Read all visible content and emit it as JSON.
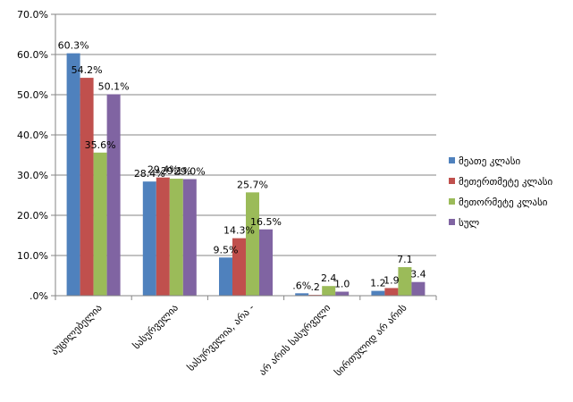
{
  "chart_data": {
    "type": "bar",
    "categories": [
      "აუცილებელია",
      "სასურველია",
      "სასურველია, არა -",
      "არ არის სასურველი",
      "სირთულიდ არ არის"
    ],
    "series": [
      {
        "name": "მეათე კლასი",
        "color": "#4F81BD",
        "values": [
          60.3,
          28.4,
          9.5,
          0.6,
          1.2
        ],
        "labels": [
          "60.3%",
          "28.4%",
          "9.5%",
          ".6%",
          "1.2"
        ]
      },
      {
        "name": "მეთერთმეტე კლასი",
        "color": "#C0504D",
        "values": [
          54.2,
          29.4,
          14.3,
          0.2,
          1.9
        ],
        "labels": [
          "54.2%",
          "29.4%",
          "14.3%",
          ".2",
          "1.9"
        ]
      },
      {
        "name": "მეთორმეტე კლასი",
        "color": "#9BBB59",
        "values": [
          35.6,
          29.1,
          25.7,
          2.4,
          7.1
        ],
        "labels": [
          "35.6%",
          "29.1%",
          "25.7%",
          "2.4",
          "7.1"
        ]
      },
      {
        "name": "სულ",
        "color": "#8064A2",
        "values": [
          50.1,
          29.0,
          16.5,
          1.0,
          3.4
        ],
        "labels": [
          "50.1%",
          "29.0%",
          "16.5%",
          "1.0",
          "3.4"
        ]
      }
    ],
    "yticks": [
      "70.0%",
      "60.0%",
      "50.0%",
      "40.0%",
      "30.0%",
      "20.0%",
      "10.0%",
      ".0%"
    ],
    "ylim": [
      0,
      70
    ],
    "grid": true,
    "legend_position": "right"
  }
}
